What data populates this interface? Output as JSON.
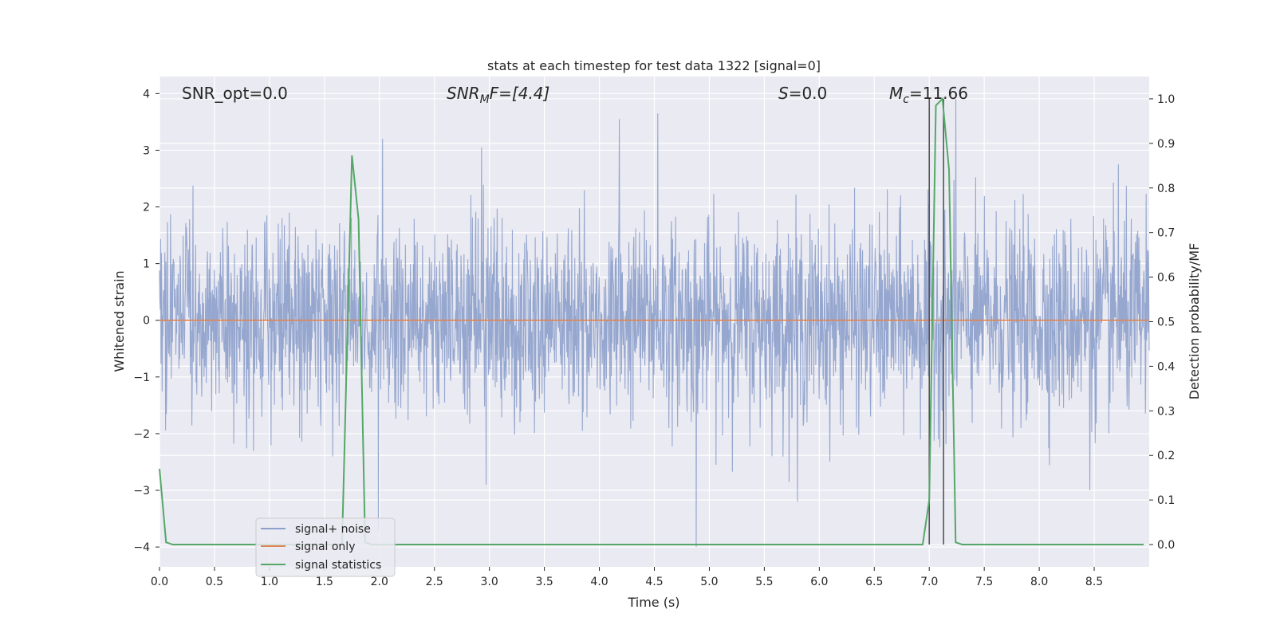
{
  "chart_data": {
    "type": "line",
    "title": "stats at each timestep for test data 1322 [signal=0]",
    "xlabel": "Time (s)",
    "ylabel_left": "Whitened strain",
    "ylabel_right": "Detection probability/MF",
    "xlim": [
      0.0,
      9.0
    ],
    "ylim_left": [
      -4.35,
      4.3
    ],
    "ylim_right": [
      -0.05,
      1.05
    ],
    "xticks": [
      "0.0",
      "0.5",
      "1.0",
      "1.5",
      "2.0",
      "2.5",
      "3.0",
      "3.5",
      "4.0",
      "4.5",
      "5.0",
      "5.5",
      "6.0",
      "6.5",
      "7.0",
      "7.5",
      "8.0",
      "8.5"
    ],
    "yticks_left": [
      "−4",
      "−3",
      "−2",
      "−1",
      "0",
      "1",
      "2",
      "3",
      "4"
    ],
    "yticks_right": [
      "0.0",
      "0.1",
      "0.2",
      "0.3",
      "0.4",
      "0.5",
      "0.6",
      "0.7",
      "0.8",
      "0.9",
      "1.0"
    ],
    "grid": true,
    "legend_position": "lower-left",
    "annotations": {
      "snr_opt": "SNR_opt=0.0",
      "snr_mf_sym": "SNR",
      "snr_mf_sub": "M",
      "snr_mf_rest": "F=[4.4]",
      "s_sym": "S",
      "s_rest": "=0.0",
      "mc_sym": "M",
      "mc_sub": "c",
      "mc_rest": "=11.66"
    },
    "series": [
      {
        "name": "signal+ noise",
        "axis": "left",
        "color": "#8da0cb",
        "description_envelope": {
          "x_range": [
            0.0,
            9.0
          ],
          "typical_range": [
            -1.6,
            1.6
          ],
          "peaks": [
            {
              "x": 2.03,
              "y": 3.2
            },
            {
              "x": 4.18,
              "y": 3.55
            },
            {
              "x": 4.53,
              "y": 3.65
            },
            {
              "x": 7.24,
              "y": 3.9
            },
            {
              "x": 2.93,
              "y": 3.05
            },
            {
              "x": 8.72,
              "y": 2.75
            }
          ],
          "troughs": [
            {
              "x": 4.88,
              "y": -4.0
            },
            {
              "x": 1.99,
              "y": -3.7
            },
            {
              "x": 5.8,
              "y": -3.2
            },
            {
              "x": 8.46,
              "y": -3.0
            },
            {
              "x": 2.97,
              "y": -2.9
            }
          ]
        }
      },
      {
        "name": "signal only",
        "axis": "left",
        "color": "#dd8452",
        "x": [
          0.0,
          9.0
        ],
        "y": [
          0.0,
          0.0
        ]
      },
      {
        "name": "signal statistics",
        "axis": "right",
        "color": "#55a868",
        "x": [
          0.0,
          0.06,
          0.12,
          1.66,
          1.75,
          1.81,
          1.87,
          1.93,
          6.94,
          7.0,
          7.06,
          7.12,
          7.18,
          7.24,
          7.3,
          8.95
        ],
        "y": [
          0.17,
          0.005,
          0.0,
          0.0,
          0.873,
          0.73,
          0.005,
          0.0,
          0.0,
          0.1,
          0.985,
          1.0,
          0.84,
          0.005,
          0.0,
          0.0
        ]
      }
    ],
    "vertical_lines_x": [
      7.0,
      7.13
    ],
    "vertical_line_color": "#555555"
  }
}
